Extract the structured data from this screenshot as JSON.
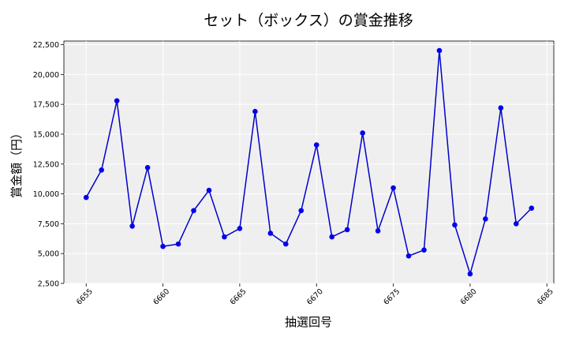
{
  "chart_data": {
    "type": "line",
    "title": "セット（ボックス）の賞金推移",
    "xlabel": "抽選回号",
    "ylabel": "賞金額（円）",
    "xlim": [
      6653.55,
      6685.45
    ],
    "ylim": [
      2500,
      22800
    ],
    "xticks": [
      6655,
      6660,
      6665,
      6670,
      6675,
      6680,
      6685
    ],
    "yticks": [
      2500,
      5000,
      7500,
      10000,
      12500,
      15000,
      17500,
      20000,
      22500
    ],
    "ytick_labels": [
      "2,500",
      "5,000",
      "7,500",
      "10,000",
      "12,500",
      "15,000",
      "17,500",
      "20,000",
      "22,500"
    ],
    "grid": true,
    "colors": {
      "line": "#0000cc",
      "marker": "#0000ee",
      "plot_bg": "#efefef",
      "grid": "#ffffff"
    },
    "series": [
      {
        "x": [
          6655,
          6656,
          6657,
          6658,
          6659,
          6660,
          6661,
          6662,
          6663,
          6664,
          6665,
          6666,
          6667,
          6668,
          6669,
          6670,
          6671,
          6672,
          6673,
          6674,
          6675,
          6676,
          6677,
          6678,
          6679,
          6680,
          6681,
          6682,
          6683,
          6684
        ],
        "values": [
          9700,
          12000,
          17800,
          7300,
          12200,
          5600,
          5800,
          8600,
          10300,
          6400,
          7100,
          16900,
          6700,
          5800,
          8600,
          14100,
          6400,
          7000,
          15100,
          6900,
          10500,
          4800,
          5300,
          22000,
          7400,
          3300,
          7900,
          17200,
          7500,
          8800
        ]
      }
    ]
  }
}
